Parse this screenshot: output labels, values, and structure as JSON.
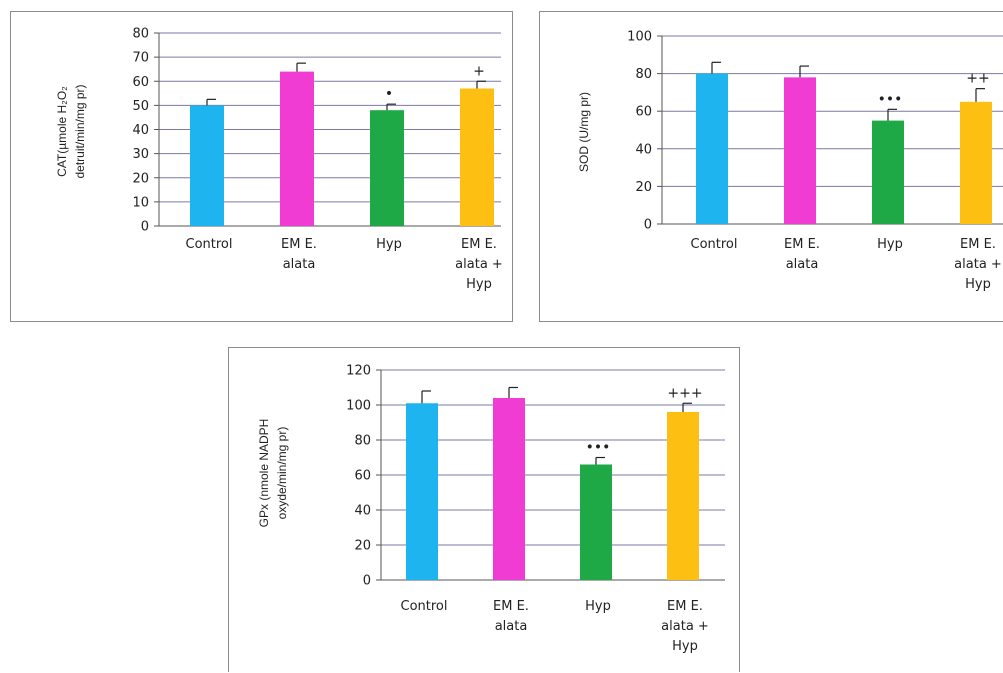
{
  "chart_data": [
    {
      "type": "bar",
      "categories": [
        [
          "Control"
        ],
        [
          "EM E.",
          "alata"
        ],
        [
          "Hyp"
        ],
        [
          "EM E.",
          "alata +",
          "Hyp"
        ]
      ],
      "values": [
        50,
        64,
        48,
        57
      ],
      "errors": [
        2.5,
        3.5,
        2.5,
        3
      ],
      "annotations": [
        "",
        "",
        "•",
        "+"
      ],
      "ylabel": [
        "CAT(µmole H₂O₂",
        "detruit/min/mg pr)"
      ],
      "ylim": [
        0,
        80
      ],
      "yticks": [
        0,
        10,
        20,
        30,
        40,
        50,
        60,
        70,
        80
      ],
      "grid": true,
      "colors": [
        "#1eb4f0",
        "#f03cd2",
        "#1ea846",
        "#fcbf12"
      ]
    },
    {
      "type": "bar",
      "categories": [
        [
          "Control"
        ],
        [
          "EM E.",
          "alata"
        ],
        [
          "Hyp"
        ],
        [
          "EM E.",
          "alata +",
          "Hyp"
        ]
      ],
      "values": [
        80,
        78,
        55,
        65
      ],
      "errors": [
        6,
        6,
        6,
        7
      ],
      "annotations": [
        "",
        "",
        "•••",
        "++"
      ],
      "ylabel": [
        "SOD (U/mg pr)"
      ],
      "ylim": [
        0,
        100
      ],
      "yticks": [
        0,
        20,
        40,
        60,
        80,
        100
      ],
      "grid": true,
      "colors": [
        "#1eb4f0",
        "#f03cd2",
        "#1ea846",
        "#fcbf12"
      ]
    },
    {
      "type": "bar",
      "categories": [
        [
          "Control"
        ],
        [
          "EM E.",
          "alata"
        ],
        [
          "Hyp"
        ],
        [
          "EM E.",
          "alata +",
          "Hyp"
        ]
      ],
      "values": [
        101,
        104,
        66,
        96
      ],
      "errors": [
        7,
        6,
        4,
        5
      ],
      "annotations": [
        "",
        "",
        "•••",
        "+++"
      ],
      "ylabel": [
        "GPx (nmole NADPH",
        "oxyde/min/mg pr)"
      ],
      "ylim": [
        0,
        120
      ],
      "yticks": [
        0,
        20,
        40,
        60,
        80,
        100,
        120
      ],
      "grid": true,
      "colors": [
        "#1eb4f0",
        "#f03cd2",
        "#1ea846",
        "#fcbf12"
      ]
    }
  ]
}
